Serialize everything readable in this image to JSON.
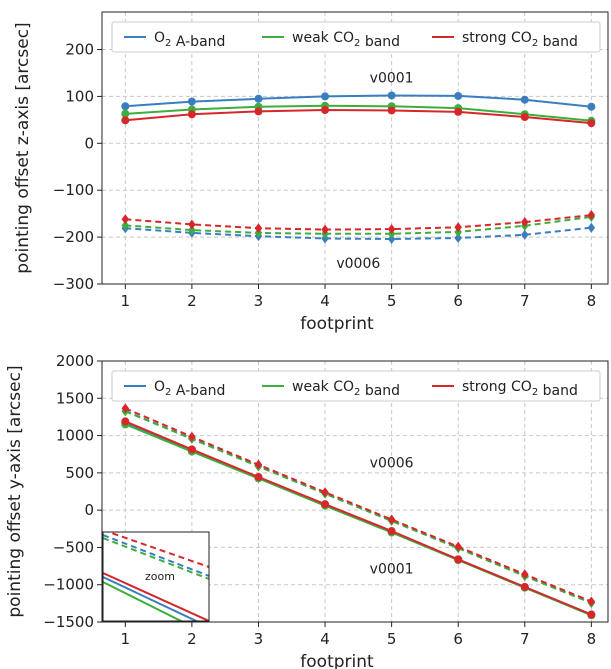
{
  "chart_data": [
    {
      "type": "line",
      "xlabel": "footprint",
      "ylabel": "pointing offset z-axis [arcsec]",
      "x": [
        1,
        2,
        3,
        4,
        5,
        6,
        7,
        8
      ],
      "xlim": [
        0.65,
        8.25
      ],
      "ylim": [
        -300,
        280
      ],
      "yticks": [
        -300,
        -200,
        -100,
        0,
        100,
        200
      ],
      "grid": true,
      "legend_position": "top",
      "annotations": [
        {
          "text": "v0001",
          "x": 5,
          "y": 140
        },
        {
          "text": "v0006",
          "x": 4.5,
          "y": -255
        }
      ],
      "series": [
        {
          "name": "O₂ A-band",
          "version": "v0001",
          "style": "solid",
          "color": "#3a7ebf",
          "marker": "circle",
          "values": [
            79,
            89,
            95,
            100,
            102,
            101,
            93,
            78
          ]
        },
        {
          "name": "weak CO₂ band",
          "version": "v0001",
          "style": "solid",
          "color": "#3dae3d",
          "marker": "circle",
          "values": [
            63,
            72,
            78,
            80,
            79,
            75,
            62,
            48
          ]
        },
        {
          "name": "strong CO₂ band",
          "version": "v0001",
          "style": "solid",
          "color": "#d6272a",
          "marker": "circle",
          "values": [
            49,
            62,
            68,
            71,
            70,
            67,
            56,
            43
          ]
        },
        {
          "name": "O₂ A-band",
          "version": "v0006",
          "style": "dashed",
          "color": "#3a7ebf",
          "marker": "diamond",
          "values": [
            -181,
            -191,
            -198,
            -203,
            -204,
            -202,
            -195,
            -180
          ]
        },
        {
          "name": "weak CO₂ band",
          "version": "v0006",
          "style": "dashed",
          "color": "#3dae3d",
          "marker": "diamond",
          "values": [
            -175,
            -185,
            -191,
            -193,
            -193,
            -189,
            -176,
            -157
          ]
        },
        {
          "name": "strong CO₂ band",
          "version": "v0006",
          "style": "dashed",
          "color": "#d6272a",
          "marker": "diamond",
          "values": [
            -162,
            -173,
            -181,
            -184,
            -183,
            -179,
            -168,
            -153
          ]
        }
      ]
    },
    {
      "type": "line",
      "xlabel": "footprint",
      "ylabel": "pointing offset y-axis [arcsec]",
      "x": [
        1,
        2,
        3,
        4,
        5,
        6,
        7,
        8
      ],
      "xlim": [
        0.65,
        8.25
      ],
      "ylim": [
        -1500,
        2000
      ],
      "yticks": [
        -1500,
        -1000,
        -500,
        0,
        500,
        1000,
        1500,
        2000
      ],
      "grid": true,
      "legend_position": "top",
      "annotations": [
        {
          "text": "v0006",
          "x": 5,
          "y": 640
        },
        {
          "text": "v0001",
          "x": 5,
          "y": -780
        },
        {
          "text": "zoom",
          "x": 1.5,
          "y": -930
        }
      ],
      "series": [
        {
          "name": "O₂ A-band",
          "version": "v0001",
          "style": "solid",
          "color": "#3a7ebf",
          "marker": "circle",
          "values": [
            1170,
            800,
            440,
            75,
            -290,
            -660,
            -1030,
            -1400
          ]
        },
        {
          "name": "weak CO₂ band",
          "version": "v0001",
          "style": "solid",
          "color": "#3dae3d",
          "marker": "circle",
          "values": [
            1150,
            785,
            425,
            60,
            -300,
            -670,
            -1040,
            -1410
          ]
        },
        {
          "name": "strong CO₂ band",
          "version": "v0001",
          "style": "solid",
          "color": "#d6272a",
          "marker": "circle",
          "values": [
            1190,
            815,
            445,
            80,
            -280,
            -660,
            -1030,
            -1400
          ]
        },
        {
          "name": "O₂ A-band",
          "version": "v0006",
          "style": "dashed",
          "color": "#3a7ebf",
          "marker": "diamond",
          "values": [
            1330,
            960,
            590,
            225,
            -140,
            -505,
            -880,
            -1240
          ]
        },
        {
          "name": "weak CO₂ band",
          "version": "v0006",
          "style": "dashed",
          "color": "#3dae3d",
          "marker": "diamond",
          "values": [
            1325,
            955,
            585,
            220,
            -145,
            -510,
            -885,
            -1245
          ]
        },
        {
          "name": "strong CO₂ band",
          "version": "v0006",
          "style": "dashed",
          "color": "#d6272a",
          "marker": "diamond",
          "values": [
            1365,
            985,
            610,
            240,
            -125,
            -490,
            -860,
            -1225
          ]
        }
      ]
    }
  ]
}
